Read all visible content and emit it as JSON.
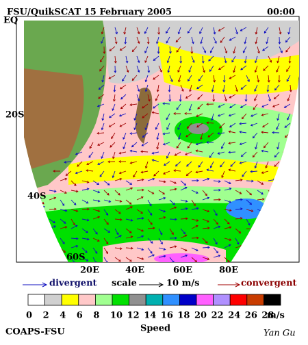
{
  "header": {
    "title": "FSU/QuikSCAT  15 February 2005",
    "time": "00:00"
  },
  "map": {
    "lat_labels": [
      "EQ",
      "20S",
      "40S",
      "60S"
    ],
    "lon_labels": [
      "20E",
      "40E",
      "60E",
      "80E"
    ]
  },
  "legend": {
    "divergent": "divergent",
    "scale": "scale",
    "scale_value": "10 m/s",
    "convergent": "convergent"
  },
  "colorbar": {
    "ticks": [
      0,
      2,
      4,
      6,
      8,
      10,
      12,
      14,
      16,
      18,
      20,
      22,
      24,
      26,
      28
    ],
    "unit": "m/s",
    "label": "Speed",
    "colors": [
      "#ffffff",
      "#d0d0d0",
      "#ffff00",
      "#ffc8c8",
      "#a0ff90",
      "#00e000",
      "#909090",
      "#00b0b0",
      "#3090ff",
      "#0000c8",
      "#ff60ff",
      "#b090ff",
      "#ff0000",
      "#c83c00",
      "#000000"
    ]
  },
  "footer": {
    "left": "COAPS-FSU",
    "right": "Yan Gu"
  }
}
